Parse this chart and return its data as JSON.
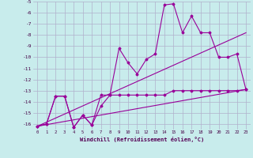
{
  "xlabel": "Windchill (Refroidissement éolien,°C)",
  "x": [
    0,
    1,
    2,
    3,
    4,
    5,
    6,
    7,
    8,
    9,
    10,
    11,
    12,
    13,
    14,
    15,
    16,
    17,
    18,
    19,
    20,
    21,
    22,
    23
  ],
  "line1": [
    -16.2,
    -16.0,
    -13.5,
    -13.5,
    -16.3,
    -15.2,
    -16.1,
    -14.4,
    -13.4,
    -9.2,
    -10.5,
    -11.5,
    -10.2,
    -9.7,
    -5.3,
    -5.2,
    -7.8,
    -6.3,
    -7.8,
    -7.8,
    -10.0,
    -10.0,
    -9.7,
    -12.9
  ],
  "line2": [
    -16.2,
    -16.0,
    -13.5,
    -13.5,
    -16.3,
    -15.2,
    -16.1,
    -13.4,
    -13.4,
    -13.4,
    -13.4,
    -13.4,
    -13.4,
    -13.4,
    -13.4,
    -13.0,
    -13.0,
    -13.0,
    -13.0,
    -13.0,
    -13.0,
    -13.0,
    -13.0,
    -12.9
  ],
  "line3_x": [
    0,
    23
  ],
  "line3_y": [
    -16.2,
    -7.8
  ],
  "line4_x": [
    0,
    23
  ],
  "line4_y": [
    -16.2,
    -12.9
  ],
  "ylim": [
    -16.5,
    -5.0
  ],
  "xlim": [
    -0.5,
    23.5
  ],
  "yticks": [
    -5,
    -6,
    -7,
    -8,
    -9,
    -10,
    -11,
    -12,
    -13,
    -14,
    -15,
    -16
  ],
  "xticks": [
    0,
    1,
    2,
    3,
    4,
    5,
    6,
    7,
    8,
    9,
    10,
    11,
    12,
    13,
    14,
    15,
    16,
    17,
    18,
    19,
    20,
    21,
    22,
    23
  ],
  "bg_color": "#c8ecec",
  "grid_color": "#b0b0cc",
  "line_color": "#990099",
  "line_width": 0.8,
  "marker": "D",
  "marker_size": 1.5
}
